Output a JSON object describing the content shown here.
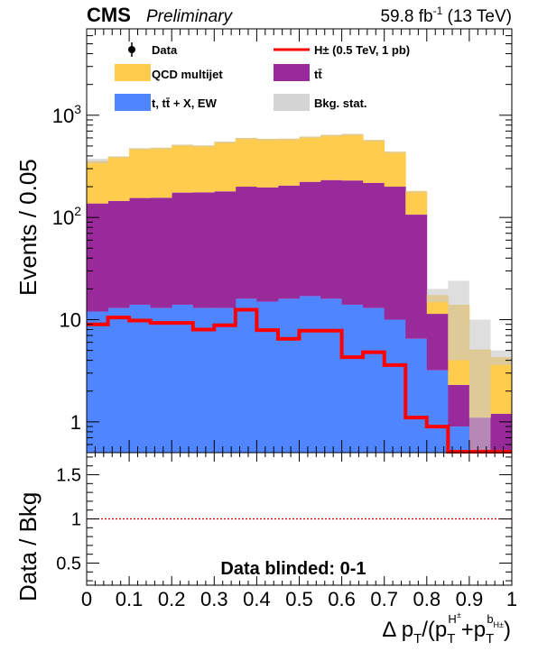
{
  "header": {
    "experiment": "CMS",
    "status": "Preliminary",
    "lumi": "59.8 fb",
    "lumi_sup": "-1",
    "energy": "(13 TeV)"
  },
  "legend": {
    "data": "Data",
    "signal": "H± (0.5 TeV, 1 pb)",
    "qcd": "QCD multijet",
    "ttbar": "tt̄",
    "other": "t, tt̄ + X, EW",
    "stat": "Bkg. stat."
  },
  "axes": {
    "ylabel_top": "Events / 0.05",
    "ylabel_bottom": "Data / Bkg",
    "xlabel": "Δ pT/(pT^H± + pT^bH±)",
    "blinded_text": "Data blinded: 0-1"
  },
  "colors": {
    "qcd": "#ffcc4d",
    "ttbar": "#992a9a",
    "other": "#4f86ff",
    "signal": "#ff0000",
    "stat": "#c8c8c8",
    "ratio_line": "#cc0000"
  },
  "chart_data": [
    {
      "type": "bar",
      "stacked": true,
      "yscale": "log",
      "ylim": [
        0.5,
        7000
      ],
      "xlim": [
        0,
        1
      ],
      "bin_width": 0.05,
      "x_bin_low_edges": [
        0,
        0.05,
        0.1,
        0.15,
        0.2,
        0.25,
        0.3,
        0.35,
        0.4,
        0.45,
        0.5,
        0.55,
        0.6,
        0.65,
        0.7,
        0.75,
        0.8,
        0.85,
        0.9,
        0.95
      ],
      "series": [
        {
          "name": "t, tt̄ + X, EW",
          "values": [
            12,
            13,
            14,
            13,
            14,
            13,
            13,
            16,
            15,
            16,
            17,
            16,
            14,
            13,
            10,
            6.5,
            3.2,
            0.9,
            0.5,
            0.5
          ]
        },
        {
          "name": "tt̄",
          "values": [
            125,
            132,
            141,
            143,
            161,
            163,
            167,
            184,
            182,
            189,
            206,
            216,
            216,
            205,
            190,
            100,
            8.2,
            1.4,
            0.6,
            0.7
          ]
        },
        {
          "name": "QCD multijet",
          "values": [
            220,
            250,
            320,
            325,
            340,
            330,
            370,
            400,
            390,
            385,
            395,
            410,
            425,
            355,
            240,
            75,
            6.0,
            11.7,
            4.0,
            3.1
          ]
        }
      ],
      "stat_unc_top": [
        375,
        395,
        475,
        481,
        515,
        506,
        550,
        600,
        587,
        590,
        618,
        642,
        655,
        573,
        440,
        180,
        20,
        24,
        10,
        5
      ]
    },
    {
      "type": "line",
      "name": "H± (0.5 TeV, 1 pb)",
      "x": [
        0,
        0.05,
        0.1,
        0.15,
        0.2,
        0.25,
        0.3,
        0.35,
        0.4,
        0.45,
        0.5,
        0.55,
        0.6,
        0.65,
        0.7,
        0.75,
        0.8,
        0.85,
        0.9,
        0.95
      ],
      "values": [
        9.0,
        10.5,
        9.8,
        9.3,
        9.3,
        8.0,
        8.8,
        12.5,
        7.9,
        6.5,
        7.8,
        7.8,
        4.3,
        4.8,
        3.6,
        1.1,
        0.9,
        0.45,
        0.45,
        0.45
      ]
    },
    {
      "type": "line",
      "name": "Data / Bkg",
      "yscale": "linear",
      "ylim": [
        0.25,
        1.75
      ],
      "x": [
        0,
        1
      ],
      "values": [
        1,
        1
      ],
      "yticks": [
        0.5,
        1,
        1.5
      ],
      "xticks": [
        0,
        0.1,
        0.2,
        0.3,
        0.4,
        0.5,
        0.6,
        0.7,
        0.8,
        0.9,
        1
      ]
    }
  ]
}
